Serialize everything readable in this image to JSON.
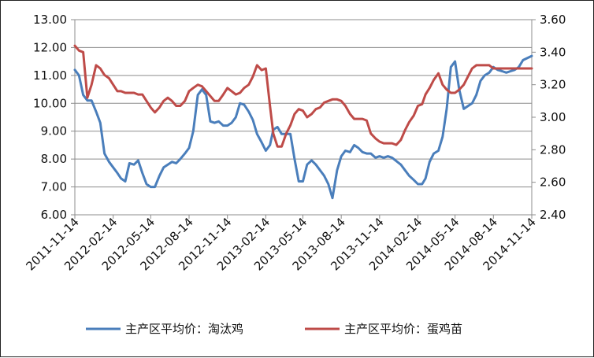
{
  "chart_data": {
    "type": "line",
    "title": "",
    "xlabel": "",
    "ylabel": "",
    "y_left_ticks": [
      "6.00",
      "7.00",
      "8.00",
      "9.00",
      "10.00",
      "11.00",
      "12.00",
      "13.00"
    ],
    "y_left_range": [
      6,
      13
    ],
    "y_right_ticks": [
      "2.40",
      "2.60",
      "2.80",
      "3.00",
      "3.20",
      "3.40",
      "3.60"
    ],
    "y_right_range": [
      2.4,
      3.6
    ],
    "x_ticks": [
      "2011-11-14",
      "2012-02-14",
      "2012-05-14",
      "2012-08-14",
      "2012-11-14",
      "2013-02-14",
      "2013-05-14",
      "2013-08-14",
      "2013-11-14",
      "2014-02-14",
      "2014-05-14",
      "2014-08-14",
      "2014-11-14"
    ],
    "x_range": [
      "2011-11-14",
      "2014-11-14"
    ],
    "legend_position": "bottom",
    "series": [
      {
        "name": "主产区平均价：淘汰鸡",
        "axis": "left",
        "color": "#4a7ebb",
        "points": [
          [
            "2011-11-14",
            11.2
          ],
          [
            "2011-11-24",
            11.0
          ],
          [
            "2011-12-04",
            10.3
          ],
          [
            "2011-12-14",
            10.1
          ],
          [
            "2011-12-24",
            10.1
          ],
          [
            "2012-01-04",
            9.7
          ],
          [
            "2012-01-14",
            9.3
          ],
          [
            "2012-01-24",
            8.2
          ],
          [
            "2012-02-04",
            7.9
          ],
          [
            "2012-02-14",
            7.7
          ],
          [
            "2012-02-24",
            7.5
          ],
          [
            "2012-03-04",
            7.3
          ],
          [
            "2012-03-14",
            7.2
          ],
          [
            "2012-03-24",
            7.85
          ],
          [
            "2012-04-04",
            7.8
          ],
          [
            "2012-04-14",
            7.95
          ],
          [
            "2012-04-24",
            7.5
          ],
          [
            "2012-05-04",
            7.1
          ],
          [
            "2012-05-14",
            7.0
          ],
          [
            "2012-05-24",
            7.0
          ],
          [
            "2012-06-04",
            7.4
          ],
          [
            "2012-06-14",
            7.7
          ],
          [
            "2012-06-24",
            7.8
          ],
          [
            "2012-07-04",
            7.9
          ],
          [
            "2012-07-14",
            7.85
          ],
          [
            "2012-07-24",
            8.0
          ],
          [
            "2012-08-04",
            8.2
          ],
          [
            "2012-08-14",
            8.4
          ],
          [
            "2012-08-24",
            9.0
          ],
          [
            "2012-09-04",
            10.3
          ],
          [
            "2012-09-14",
            10.5
          ],
          [
            "2012-09-24",
            10.3
          ],
          [
            "2012-10-04",
            9.35
          ],
          [
            "2012-10-14",
            9.3
          ],
          [
            "2012-10-24",
            9.35
          ],
          [
            "2012-11-04",
            9.2
          ],
          [
            "2012-11-14",
            9.2
          ],
          [
            "2012-11-24",
            9.3
          ],
          [
            "2012-12-04",
            9.5
          ],
          [
            "2012-12-14",
            10.0
          ],
          [
            "2012-12-24",
            9.95
          ],
          [
            "2013-01-04",
            9.7
          ],
          [
            "2013-01-14",
            9.4
          ],
          [
            "2013-01-24",
            8.9
          ],
          [
            "2013-02-04",
            8.6
          ],
          [
            "2013-02-14",
            8.3
          ],
          [
            "2013-02-24",
            8.5
          ],
          [
            "2013-03-04",
            9.05
          ],
          [
            "2013-03-14",
            9.15
          ],
          [
            "2013-03-24",
            8.9
          ],
          [
            "2013-04-04",
            8.9
          ],
          [
            "2013-04-14",
            8.9
          ],
          [
            "2013-04-24",
            8.0
          ],
          [
            "2013-05-04",
            7.2
          ],
          [
            "2013-05-14",
            7.2
          ],
          [
            "2013-05-24",
            7.8
          ],
          [
            "2013-06-04",
            7.95
          ],
          [
            "2013-06-14",
            7.8
          ],
          [
            "2013-06-24",
            7.6
          ],
          [
            "2013-07-04",
            7.4
          ],
          [
            "2013-07-14",
            7.1
          ],
          [
            "2013-07-24",
            6.6
          ],
          [
            "2013-08-04",
            7.6
          ],
          [
            "2013-08-14",
            8.1
          ],
          [
            "2013-08-24",
            8.3
          ],
          [
            "2013-09-04",
            8.25
          ],
          [
            "2013-09-14",
            8.5
          ],
          [
            "2013-09-24",
            8.4
          ],
          [
            "2013-10-04",
            8.25
          ],
          [
            "2013-10-14",
            8.2
          ],
          [
            "2013-10-24",
            8.2
          ],
          [
            "2013-11-04",
            8.05
          ],
          [
            "2013-11-14",
            8.1
          ],
          [
            "2013-11-24",
            8.05
          ],
          [
            "2013-12-04",
            8.1
          ],
          [
            "2013-12-14",
            8.05
          ],
          [
            "2014-01-04",
            7.8
          ],
          [
            "2014-01-14",
            7.6
          ],
          [
            "2014-01-24",
            7.4
          ],
          [
            "2014-02-04",
            7.25
          ],
          [
            "2014-02-14",
            7.1
          ],
          [
            "2014-02-24",
            7.1
          ],
          [
            "2014-03-04",
            7.3
          ],
          [
            "2014-03-14",
            7.9
          ],
          [
            "2014-03-24",
            8.2
          ],
          [
            "2014-04-04",
            8.3
          ],
          [
            "2014-04-14",
            8.8
          ],
          [
            "2014-04-24",
            9.8
          ],
          [
            "2014-05-04",
            11.3
          ],
          [
            "2014-05-14",
            11.5
          ],
          [
            "2014-05-24",
            10.5
          ],
          [
            "2014-06-04",
            9.8
          ],
          [
            "2014-06-14",
            9.9
          ],
          [
            "2014-06-24",
            10.0
          ],
          [
            "2014-07-04",
            10.3
          ],
          [
            "2014-07-14",
            10.8
          ],
          [
            "2014-07-24",
            11.0
          ],
          [
            "2014-08-04",
            11.1
          ],
          [
            "2014-08-14",
            11.3
          ],
          [
            "2014-08-24",
            11.2
          ],
          [
            "2014-09-04",
            11.15
          ],
          [
            "2014-09-14",
            11.1
          ],
          [
            "2014-09-24",
            11.15
          ],
          [
            "2014-10-04",
            11.2
          ],
          [
            "2014-10-14",
            11.3
          ],
          [
            "2014-10-24",
            11.55
          ],
          [
            "2014-11-14",
            11.7
          ]
        ]
      },
      {
        "name": "主产区平均价：蛋鸡苗",
        "axis": "right",
        "color": "#be4b48",
        "points": [
          [
            "2011-11-14",
            3.44
          ],
          [
            "2011-11-24",
            3.41
          ],
          [
            "2011-12-04",
            3.4
          ],
          [
            "2011-12-14",
            3.12
          ],
          [
            "2011-12-24",
            3.2
          ],
          [
            "2012-01-04",
            3.32
          ],
          [
            "2012-01-14",
            3.3
          ],
          [
            "2012-01-24",
            3.26
          ],
          [
            "2012-02-04",
            3.24
          ],
          [
            "2012-02-14",
            3.2
          ],
          [
            "2012-02-24",
            3.16
          ],
          [
            "2012-03-04",
            3.16
          ],
          [
            "2012-03-14",
            3.15
          ],
          [
            "2012-03-24",
            3.15
          ],
          [
            "2012-04-04",
            3.15
          ],
          [
            "2012-04-14",
            3.14
          ],
          [
            "2012-04-24",
            3.14
          ],
          [
            "2012-05-04",
            3.1
          ],
          [
            "2012-05-14",
            3.06
          ],
          [
            "2012-05-24",
            3.03
          ],
          [
            "2012-06-04",
            3.06
          ],
          [
            "2012-06-14",
            3.1
          ],
          [
            "2012-06-24",
            3.12
          ],
          [
            "2012-07-04",
            3.1
          ],
          [
            "2012-07-14",
            3.07
          ],
          [
            "2012-07-24",
            3.07
          ],
          [
            "2012-08-04",
            3.1
          ],
          [
            "2012-08-14",
            3.16
          ],
          [
            "2012-08-24",
            3.18
          ],
          [
            "2012-09-04",
            3.2
          ],
          [
            "2012-09-14",
            3.19
          ],
          [
            "2012-09-24",
            3.16
          ],
          [
            "2012-10-04",
            3.13
          ],
          [
            "2012-10-14",
            3.1
          ],
          [
            "2012-10-24",
            3.1
          ],
          [
            "2012-11-04",
            3.14
          ],
          [
            "2012-11-14",
            3.18
          ],
          [
            "2012-11-24",
            3.16
          ],
          [
            "2012-12-04",
            3.14
          ],
          [
            "2012-12-14",
            3.15
          ],
          [
            "2012-12-24",
            3.18
          ],
          [
            "2013-01-04",
            3.2
          ],
          [
            "2013-01-14",
            3.25
          ],
          [
            "2013-01-24",
            3.32
          ],
          [
            "2013-02-04",
            3.29
          ],
          [
            "2013-02-14",
            3.3
          ],
          [
            "2013-02-24",
            3.07
          ],
          [
            "2013-03-04",
            2.9
          ],
          [
            "2013-03-14",
            2.82
          ],
          [
            "2013-03-24",
            2.82
          ],
          [
            "2013-04-04",
            2.9
          ],
          [
            "2013-04-14",
            2.95
          ],
          [
            "2013-04-24",
            3.02
          ],
          [
            "2013-05-04",
            3.05
          ],
          [
            "2013-05-14",
            3.04
          ],
          [
            "2013-05-24",
            3.0
          ],
          [
            "2013-06-04",
            3.02
          ],
          [
            "2013-06-14",
            3.05
          ],
          [
            "2013-06-24",
            3.06
          ],
          [
            "2013-07-04",
            3.09
          ],
          [
            "2013-07-14",
            3.1
          ],
          [
            "2013-07-24",
            3.11
          ],
          [
            "2013-08-04",
            3.11
          ],
          [
            "2013-08-14",
            3.1
          ],
          [
            "2013-08-24",
            3.07
          ],
          [
            "2013-09-04",
            3.02
          ],
          [
            "2013-09-14",
            2.99
          ],
          [
            "2013-09-24",
            2.99
          ],
          [
            "2013-10-04",
            2.99
          ],
          [
            "2013-10-14",
            2.98
          ],
          [
            "2013-10-24",
            2.9
          ],
          [
            "2013-11-04",
            2.87
          ],
          [
            "2013-11-14",
            2.85
          ],
          [
            "2013-11-24",
            2.84
          ],
          [
            "2013-12-04",
            2.84
          ],
          [
            "2013-12-14",
            2.84
          ],
          [
            "2013-12-24",
            2.83
          ],
          [
            "2014-01-04",
            2.86
          ],
          [
            "2014-01-14",
            2.92
          ],
          [
            "2014-01-24",
            2.97
          ],
          [
            "2014-02-04",
            3.01
          ],
          [
            "2014-02-14",
            3.07
          ],
          [
            "2014-02-24",
            3.08
          ],
          [
            "2014-03-04",
            3.14
          ],
          [
            "2014-03-14",
            3.18
          ],
          [
            "2014-03-24",
            3.23
          ],
          [
            "2014-04-04",
            3.27
          ],
          [
            "2014-04-14",
            3.2
          ],
          [
            "2014-04-24",
            3.17
          ],
          [
            "2014-05-04",
            3.15
          ],
          [
            "2014-05-14",
            3.15
          ],
          [
            "2014-05-24",
            3.17
          ],
          [
            "2014-06-04",
            3.2
          ],
          [
            "2014-06-14",
            3.25
          ],
          [
            "2014-06-24",
            3.3
          ],
          [
            "2014-07-04",
            3.32
          ],
          [
            "2014-07-14",
            3.32
          ],
          [
            "2014-07-24",
            3.32
          ],
          [
            "2014-08-04",
            3.32
          ],
          [
            "2014-08-14",
            3.3
          ],
          [
            "2014-09-04",
            3.3
          ],
          [
            "2014-11-14",
            3.3
          ]
        ]
      }
    ]
  }
}
